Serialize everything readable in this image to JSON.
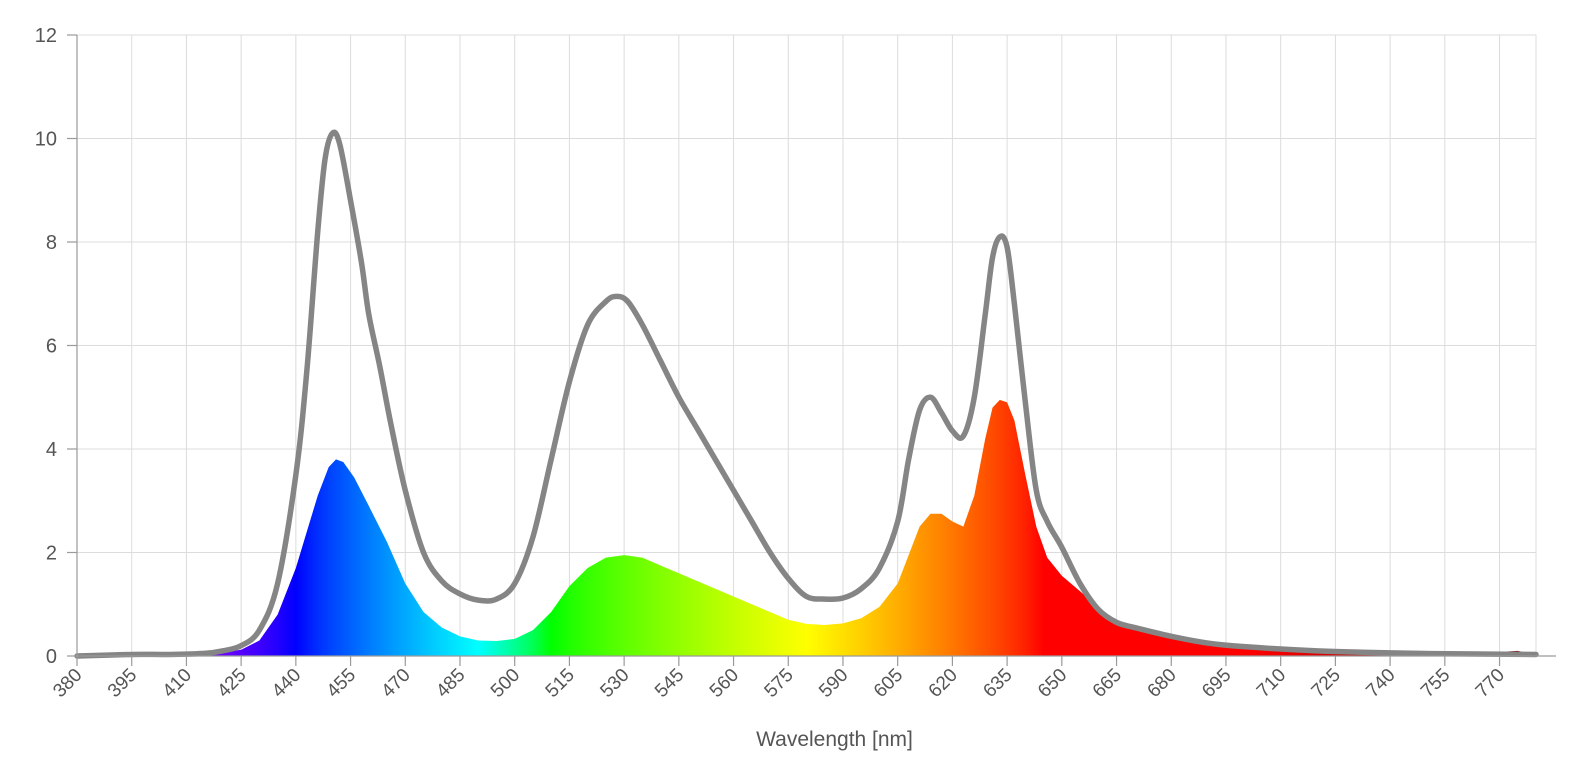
{
  "chart_data": {
    "type": "area",
    "title": "",
    "xlabel": "Wavelength [nm]",
    "ylabel": "",
    "xlim": [
      380,
      780
    ],
    "ylim": [
      0,
      12
    ],
    "grid": true,
    "x_ticks": [
      380,
      395,
      410,
      425,
      440,
      455,
      470,
      485,
      500,
      515,
      530,
      545,
      560,
      575,
      590,
      605,
      620,
      635,
      650,
      665,
      680,
      695,
      710,
      725,
      740,
      755,
      770
    ],
    "x_tick_labels": [
      "380",
      "395",
      "410",
      "425",
      "440",
      "455",
      "470",
      "485",
      "500",
      "515",
      "530",
      "545",
      "560",
      "575",
      "590",
      "605",
      "620",
      "635",
      "650",
      "665",
      "680",
      "695",
      "710",
      "725",
      "740",
      "755",
      "770"
    ],
    "y_ticks": [
      0,
      2,
      4,
      6,
      8,
      10,
      12
    ],
    "y_tick_labels": [
      "0",
      "2",
      "4",
      "6",
      "8",
      "10",
      "12"
    ],
    "series": [
      {
        "style": "line",
        "color": "#858585",
        "x": [
          380,
          395,
          405,
          415,
          420,
          425,
          430,
          435,
          440,
          443,
          446,
          448,
          450,
          452,
          455,
          458,
          460,
          463,
          466,
          470,
          475,
          480,
          485,
          490,
          495,
          500,
          505,
          510,
          515,
          520,
          525,
          528,
          531,
          535,
          540,
          545,
          550,
          555,
          560,
          565,
          570,
          575,
          580,
          585,
          590,
          595,
          600,
          605,
          608,
          611,
          614,
          617,
          620,
          623,
          626,
          629,
          631,
          633,
          635,
          637,
          640,
          643,
          646,
          650,
          655,
          660,
          665,
          670,
          680,
          690,
          700,
          720,
          740,
          760,
          780
        ],
        "y": [
          0,
          0.03,
          0.03,
          0.05,
          0.1,
          0.2,
          0.5,
          1.4,
          3.5,
          5.5,
          8.2,
          9.6,
          10.1,
          9.9,
          8.8,
          7.6,
          6.6,
          5.6,
          4.5,
          3.2,
          2.0,
          1.45,
          1.2,
          1.08,
          1.1,
          1.4,
          2.3,
          3.8,
          5.3,
          6.4,
          6.85,
          6.95,
          6.85,
          6.4,
          5.7,
          5.0,
          4.4,
          3.8,
          3.2,
          2.6,
          2.0,
          1.5,
          1.15,
          1.1,
          1.12,
          1.3,
          1.7,
          2.6,
          3.8,
          4.75,
          5.0,
          4.7,
          4.35,
          4.25,
          5.0,
          6.6,
          7.7,
          8.1,
          7.9,
          6.8,
          4.9,
          3.2,
          2.6,
          2.1,
          1.4,
          0.9,
          0.65,
          0.55,
          0.38,
          0.25,
          0.18,
          0.1,
          0.06,
          0.04,
          0.03
        ]
      },
      {
        "style": "spectrum-area",
        "x": [
          380,
          395,
          405,
          415,
          420,
          425,
          430,
          435,
          440,
          443,
          446,
          449,
          451,
          453,
          456,
          460,
          465,
          470,
          475,
          480,
          485,
          490,
          495,
          500,
          505,
          510,
          515,
          520,
          525,
          530,
          535,
          540,
          545,
          550,
          555,
          560,
          565,
          570,
          575,
          580,
          585,
          590,
          595,
          600,
          605,
          608,
          611,
          614,
          617,
          620,
          623,
          626,
          629,
          631,
          633,
          635,
          637,
          640,
          643,
          646,
          650,
          655,
          660,
          665,
          670,
          680,
          690,
          700,
          720,
          740,
          760,
          770,
          775,
          778,
          780
        ],
        "y": [
          0,
          0.02,
          0.02,
          0.04,
          0.07,
          0.12,
          0.3,
          0.8,
          1.7,
          2.4,
          3.1,
          3.65,
          3.8,
          3.75,
          3.45,
          2.9,
          2.2,
          1.4,
          0.85,
          0.55,
          0.38,
          0.3,
          0.29,
          0.33,
          0.5,
          0.85,
          1.35,
          1.7,
          1.9,
          1.95,
          1.9,
          1.75,
          1.6,
          1.45,
          1.3,
          1.15,
          1.0,
          0.85,
          0.7,
          0.62,
          0.6,
          0.63,
          0.73,
          0.95,
          1.4,
          1.95,
          2.5,
          2.75,
          2.75,
          2.6,
          2.5,
          3.1,
          4.2,
          4.8,
          4.95,
          4.9,
          4.55,
          3.5,
          2.5,
          1.9,
          1.55,
          1.25,
          0.95,
          0.6,
          0.5,
          0.35,
          0.25,
          0.18,
          0.12,
          0.08,
          0.05,
          0.08,
          0.1,
          0.05,
          0.02
        ]
      }
    ]
  }
}
